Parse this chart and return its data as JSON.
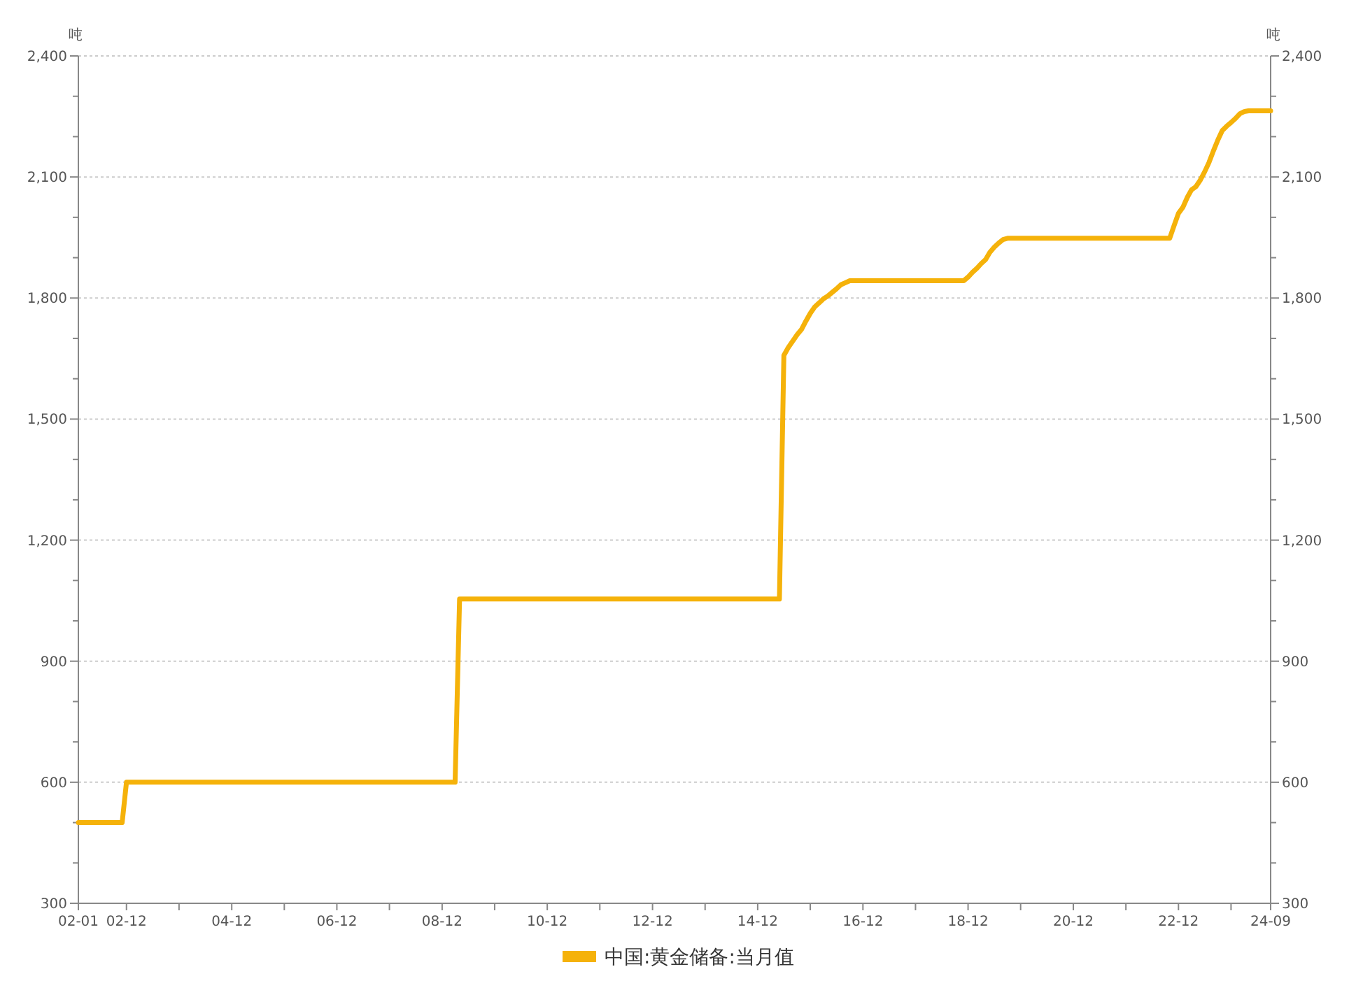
{
  "chart_data": {
    "type": "line",
    "ylabel": "吨",
    "y2label": "吨",
    "x": [
      "2002-01",
      "2002-11",
      "2002-12",
      "2009-03",
      "2009-04",
      "2015-05",
      "2015-06",
      "2015-07",
      "2015-08",
      "2015-09",
      "2015-10",
      "2015-11",
      "2015-12",
      "2016-01",
      "2016-02",
      "2016-03",
      "2016-04",
      "2016-05",
      "2016-06",
      "2016-07",
      "2016-08",
      "2016-09",
      "2018-11",
      "2018-12",
      "2019-01",
      "2019-02",
      "2019-03",
      "2019-04",
      "2019-05",
      "2019-06",
      "2019-07",
      "2019-08",
      "2019-09",
      "2022-10",
      "2022-11",
      "2022-12",
      "2023-01",
      "2023-02",
      "2023-03",
      "2023-04",
      "2023-05",
      "2023-06",
      "2023-07",
      "2023-08",
      "2023-09",
      "2023-10",
      "2023-11",
      "2023-12",
      "2024-01",
      "2024-02",
      "2024-03",
      "2024-04",
      "2024-09"
    ],
    "series": [
      {
        "name": "中国:黄金储备:当月值",
        "color": "#f5b20a",
        "values": [
          500,
          500,
          600,
          600,
          1054,
          1054,
          1658,
          1677,
          1693,
          1709,
          1722,
          1743,
          1762,
          1778,
          1788,
          1798,
          1805,
          1814,
          1823,
          1833,
          1838,
          1843,
          1843,
          1852,
          1864,
          1874,
          1885,
          1895,
          1913,
          1926,
          1936,
          1945,
          1948,
          1948,
          1980,
          2010,
          2025,
          2050,
          2068,
          2076,
          2092,
          2113,
          2136,
          2165,
          2192,
          2215,
          2226,
          2235,
          2245,
          2257,
          2262,
          2264,
          2264
        ]
      }
    ],
    "xlim": [
      "2002-01",
      "2024-09"
    ],
    "xticks": [
      {
        "value": "2002-01",
        "label": "02-01"
      },
      {
        "value": "2002-12",
        "label": "02-12"
      },
      {
        "value": "2003-12",
        "label": null
      },
      {
        "value": "2004-12",
        "label": "04-12"
      },
      {
        "value": "2005-12",
        "label": null
      },
      {
        "value": "2006-12",
        "label": "06-12"
      },
      {
        "value": "2007-12",
        "label": null
      },
      {
        "value": "2008-12",
        "label": "08-12"
      },
      {
        "value": "2009-12",
        "label": null
      },
      {
        "value": "2010-12",
        "label": "10-12"
      },
      {
        "value": "2011-12",
        "label": null
      },
      {
        "value": "2012-12",
        "label": "12-12"
      },
      {
        "value": "2013-12",
        "label": null
      },
      {
        "value": "2014-12",
        "label": "14-12"
      },
      {
        "value": "2015-12",
        "label": null
      },
      {
        "value": "2016-12",
        "label": "16-12"
      },
      {
        "value": "2017-12",
        "label": null
      },
      {
        "value": "2018-12",
        "label": "18-12"
      },
      {
        "value": "2019-12",
        "label": null
      },
      {
        "value": "2020-12",
        "label": "20-12"
      },
      {
        "value": "2021-12",
        "label": null
      },
      {
        "value": "2022-12",
        "label": "22-12"
      },
      {
        "value": "2023-12",
        "label": null
      },
      {
        "value": "2024-09",
        "label": "24-09"
      }
    ],
    "ylim": [
      300,
      2400
    ],
    "yticks": [
      {
        "value": 300,
        "label": "300"
      },
      {
        "value": 400,
        "label": null
      },
      {
        "value": 500,
        "label": null
      },
      {
        "value": 600,
        "label": "600"
      },
      {
        "value": 700,
        "label": null
      },
      {
        "value": 800,
        "label": null
      },
      {
        "value": 900,
        "label": "900"
      },
      {
        "value": 1000,
        "label": null
      },
      {
        "value": 1100,
        "label": null
      },
      {
        "value": 1200,
        "label": "1,200"
      },
      {
        "value": 1300,
        "label": null
      },
      {
        "value": 1400,
        "label": null
      },
      {
        "value": 1500,
        "label": "1,500"
      },
      {
        "value": 1600,
        "label": null
      },
      {
        "value": 1700,
        "label": null
      },
      {
        "value": 1800,
        "label": "1,800"
      },
      {
        "value": 1900,
        "label": null
      },
      {
        "value": 2000,
        "label": null
      },
      {
        "value": 2100,
        "label": "2,100"
      },
      {
        "value": 2200,
        "label": null
      },
      {
        "value": 2300,
        "label": null
      },
      {
        "value": 2400,
        "label": "2,400"
      }
    ],
    "y2lim": [
      300,
      2400
    ],
    "y2ticks": [
      {
        "value": 300,
        "label": "300"
      },
      {
        "value": 400,
        "label": null
      },
      {
        "value": 500,
        "label": null
      },
      {
        "value": 600,
        "label": "600"
      },
      {
        "value": 700,
        "label": null
      },
      {
        "value": 800,
        "label": null
      },
      {
        "value": 900,
        "label": "900"
      },
      {
        "value": 1000,
        "label": null
      },
      {
        "value": 1100,
        "label": null
      },
      {
        "value": 1200,
        "label": "1,200"
      },
      {
        "value": 1300,
        "label": null
      },
      {
        "value": 1400,
        "label": null
      },
      {
        "value": 1500,
        "label": "1,500"
      },
      {
        "value": 1600,
        "label": null
      },
      {
        "value": 1700,
        "label": null
      },
      {
        "value": 1800,
        "label": "1,800"
      },
      {
        "value": 1900,
        "label": null
      },
      {
        "value": 2000,
        "label": null
      },
      {
        "value": 2100,
        "label": "2,100"
      },
      {
        "value": 2200,
        "label": null
      },
      {
        "value": 2300,
        "label": null
      },
      {
        "value": 2400,
        "label": "2,400"
      }
    ],
    "grid": "y",
    "legend": "bottom",
    "marker": "none",
    "line_style": "solid"
  }
}
